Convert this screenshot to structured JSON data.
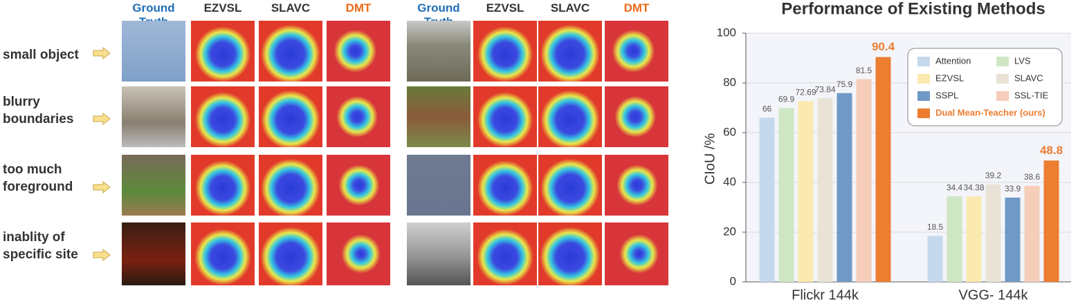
{
  "left_panel": {
    "blocks": [
      {
        "headers": [
          "Ground Truth",
          "EZVSL",
          "SLAVC",
          "DMT"
        ]
      },
      {
        "headers": [
          "Ground Truth",
          "EZVSL",
          "SLAVC",
          "DMT"
        ]
      }
    ],
    "row_labels": [
      [
        "small object"
      ],
      [
        "blurry",
        "boundaries"
      ],
      [
        "too much",
        "foreground"
      ],
      [
        "inablity of",
        "specific site"
      ]
    ]
  },
  "chart_data": {
    "type": "bar",
    "title": "Performance of Existing Methods",
    "y_label": "CIoU /%",
    "categories": [
      "Flickr 144k",
      "VGG- 144k"
    ],
    "series": [
      {
        "name": "Attention",
        "color": "#c6d9ec",
        "values": [
          66,
          18.5
        ]
      },
      {
        "name": "LVS",
        "color": "#cfe6c4",
        "values": [
          69.9,
          34.4
        ]
      },
      {
        "name": "EZVSL",
        "color": "#fbeab0",
        "values": [
          72.69,
          34.38
        ]
      },
      {
        "name": "SLAVC",
        "color": "#e8e3d6",
        "values": [
          73.84,
          39.2
        ]
      },
      {
        "name": "SSPL",
        "color": "#7199c6",
        "values": [
          75.9,
          33.9
        ]
      },
      {
        "name": "SSL-TIE",
        "color": "#f6cdb8",
        "values": [
          81.5,
          38.6
        ]
      },
      {
        "name": "Dual Mean-Teacher (ours)",
        "color": "#ec7d31",
        "values": [
          90.4,
          48.8
        ]
      }
    ],
    "ylim": [
      0,
      100
    ],
    "yticks": [
      0,
      20,
      40,
      60,
      80,
      100
    ],
    "grid": true
  }
}
